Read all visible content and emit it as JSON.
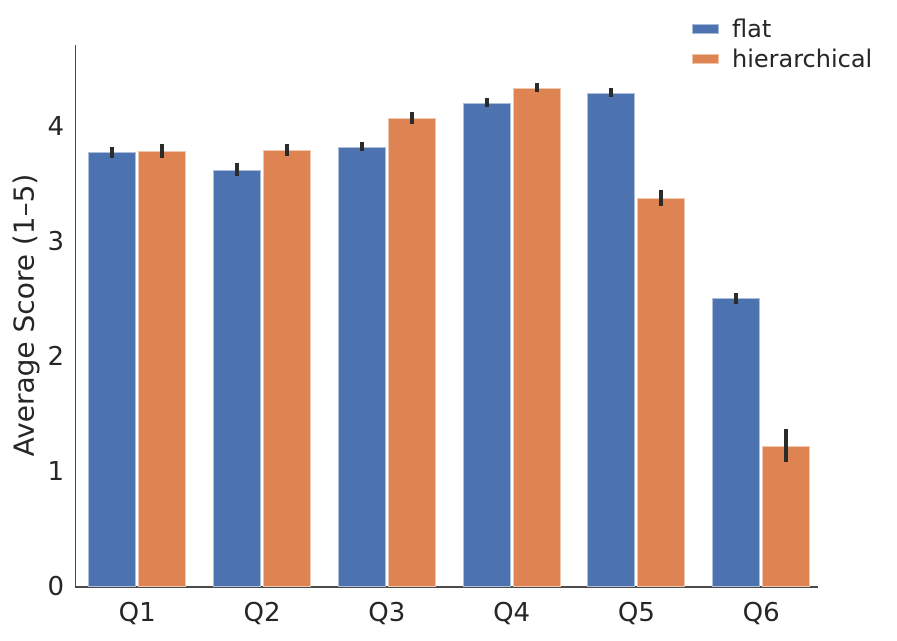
{
  "figure": {
    "background": "#ffffff",
    "text_color": "#262626",
    "spine_color": "#4a4a4a",
    "error_bar_color": "#2b2b2b"
  },
  "chart_data": {
    "type": "bar",
    "title": "",
    "xlabel": "",
    "ylabel": "Average Score (1–5)",
    "categories": [
      "Q1",
      "Q2",
      "Q3",
      "Q4",
      "Q5",
      "Q6"
    ],
    "series": [
      {
        "name": "flat",
        "color": "#4C72B0",
        "values": [
          3.78,
          3.63,
          3.83,
          4.21,
          4.3,
          2.51
        ],
        "errors": [
          0.05,
          0.06,
          0.04,
          0.04,
          0.04,
          0.05
        ]
      },
      {
        "name": "hierarchical",
        "color": "#DD8452",
        "values": [
          3.79,
          3.8,
          4.08,
          4.34,
          3.38,
          1.23
        ],
        "errors": [
          0.06,
          0.05,
          0.05,
          0.04,
          0.07,
          0.14
        ]
      }
    ],
    "yticks": [
      0,
      1,
      2,
      3,
      4
    ],
    "ylim": [
      0,
      4.71
    ],
    "grid": false,
    "error_bars": true,
    "legend": {
      "entries": [
        "flat",
        "hierarchical"
      ],
      "position": "upper right",
      "frame": false
    }
  }
}
